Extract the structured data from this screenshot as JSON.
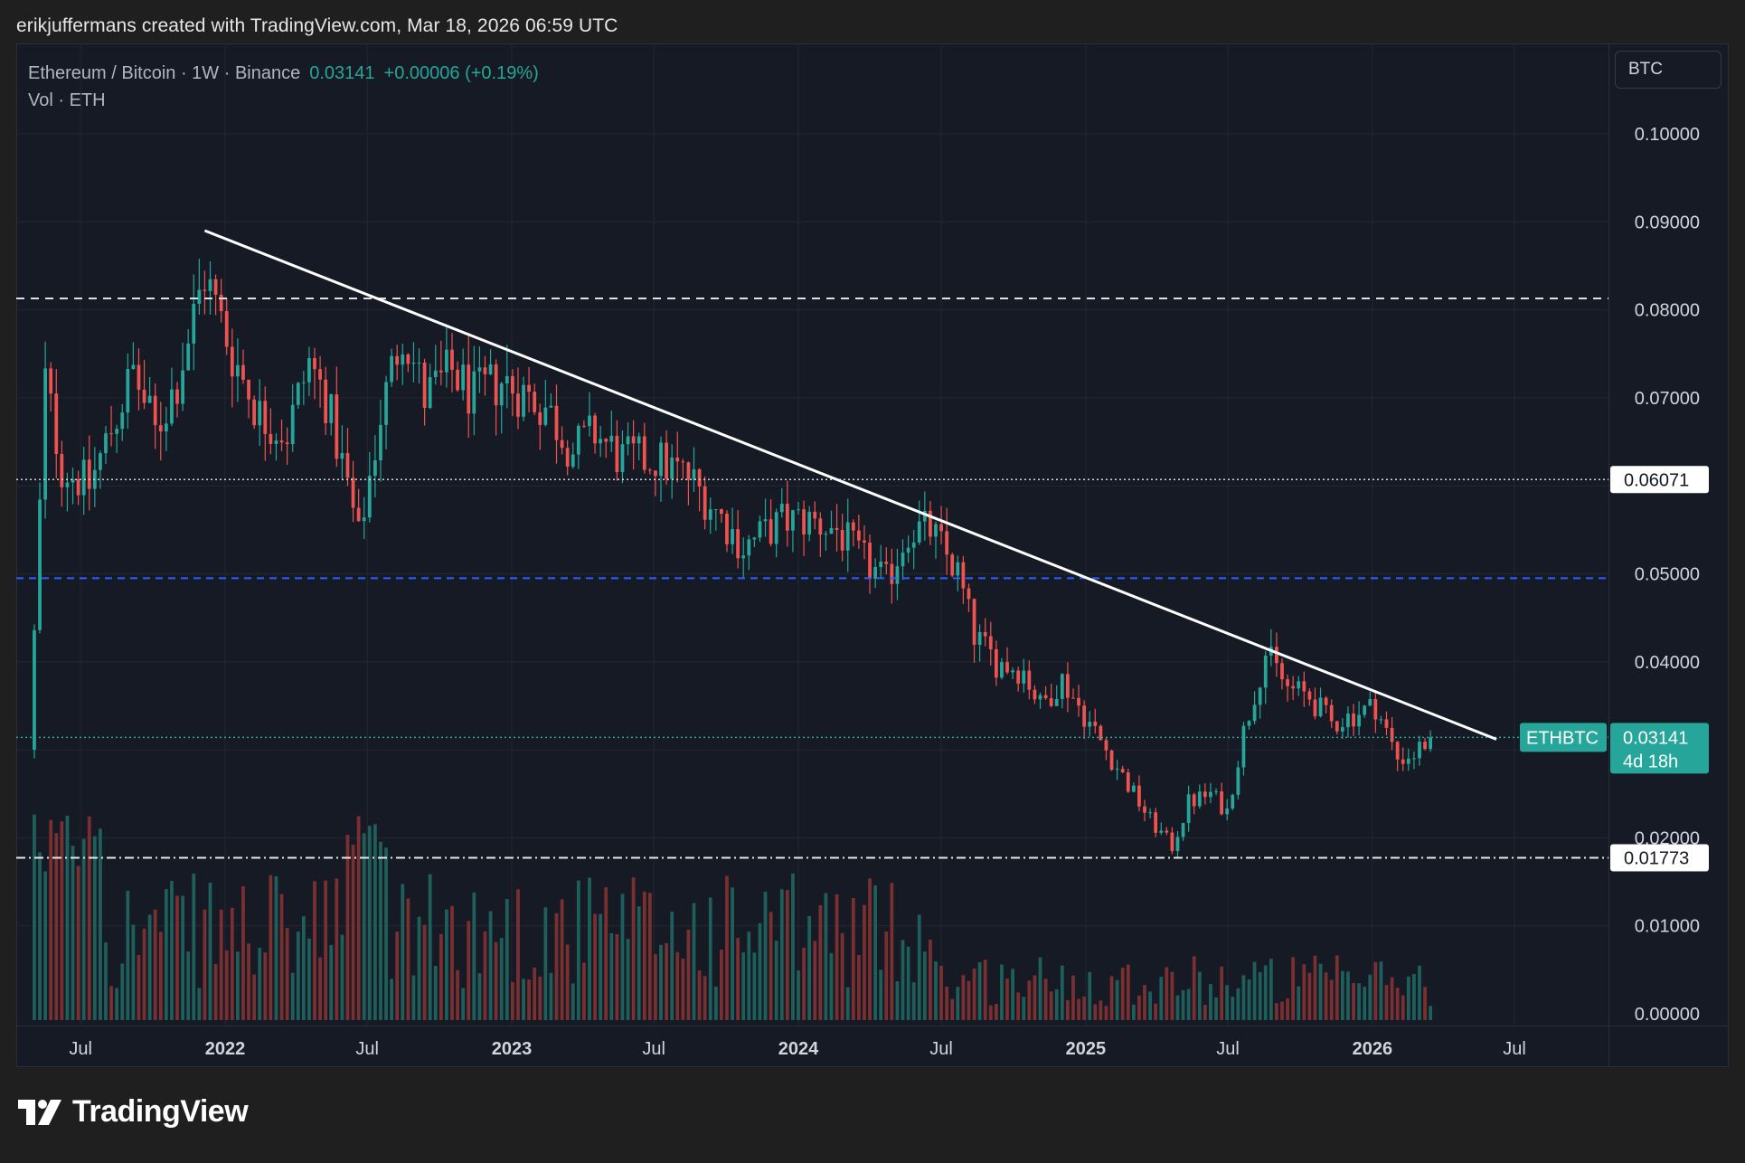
{
  "header": {
    "author_line": "erikjuffermans created with TradingView.com, Mar 18, 2026 06:59 UTC"
  },
  "legend": {
    "symbol_line": "Ethereum / Bitcoin · 1W · Binance",
    "last_price": "0.03141",
    "change": "+0.00006 (+0.19%)",
    "volume_line": "Vol · ETH"
  },
  "toolbar": {
    "currency_label": "BTC"
  },
  "branding": {
    "logo_text": "TradingView"
  },
  "colors": {
    "up": "#26a69a",
    "down": "#ef5350",
    "background": "#161a25",
    "trendline": "#ffffff",
    "support_line": "#2962ff"
  },
  "chart_data": {
    "type": "candlestick",
    "interval": "1W",
    "y_axis": {
      "ticks": [
        "0.10000",
        "0.09000",
        "0.08000",
        "0.07000",
        "0.05000",
        "0.04000",
        "0.02000",
        "0.01000",
        "0.00000"
      ],
      "range": [
        0,
        0.105
      ]
    },
    "x_axis": {
      "ticks": [
        "Jul",
        "2022",
        "Jul",
        "2023",
        "Jul",
        "2024",
        "Jul",
        "2025",
        "Jul",
        "2026",
        "Jul"
      ],
      "year_ticks": [
        "2022",
        "2023",
        "2024",
        "2025",
        "2026"
      ]
    },
    "price_anchors": [
      {
        "date": "2021-05-03",
        "close": 0.043
      },
      {
        "date": "2021-05-17",
        "close": 0.072
      },
      {
        "date": "2021-06-07",
        "close": 0.062
      },
      {
        "date": "2021-07-12",
        "close": 0.06
      },
      {
        "date": "2021-08-16",
        "close": 0.068
      },
      {
        "date": "2021-09-06",
        "close": 0.073
      },
      {
        "date": "2021-10-04",
        "close": 0.066
      },
      {
        "date": "2021-11-01",
        "close": 0.072
      },
      {
        "date": "2021-12-06",
        "close": 0.084
      },
      {
        "date": "2022-01-10",
        "close": 0.075
      },
      {
        "date": "2022-02-14",
        "close": 0.068
      },
      {
        "date": "2022-03-21",
        "close": 0.066
      },
      {
        "date": "2022-04-18",
        "close": 0.074
      },
      {
        "date": "2022-05-09",
        "close": 0.07
      },
      {
        "date": "2022-06-06",
        "close": 0.06
      },
      {
        "date": "2022-06-20",
        "close": 0.054
      },
      {
        "date": "2022-07-18",
        "close": 0.068
      },
      {
        "date": "2022-08-15",
        "close": 0.078
      },
      {
        "date": "2022-09-12",
        "close": 0.07
      },
      {
        "date": "2022-10-17",
        "close": 0.073
      },
      {
        "date": "2022-11-14",
        "close": 0.07
      },
      {
        "date": "2022-12-19",
        "close": 0.072
      },
      {
        "date": "2023-02-13",
        "close": 0.069
      },
      {
        "date": "2023-03-20",
        "close": 0.064
      },
      {
        "date": "2023-04-17",
        "close": 0.066
      },
      {
        "date": "2023-05-22",
        "close": 0.063
      },
      {
        "date": "2023-07-03",
        "close": 0.063
      },
      {
        "date": "2023-08-14",
        "close": 0.061
      },
      {
        "date": "2023-09-11",
        "close": 0.058
      },
      {
        "date": "2023-10-23",
        "close": 0.053
      },
      {
        "date": "2023-12-11",
        "close": 0.056
      },
      {
        "date": "2024-01-15",
        "close": 0.056
      },
      {
        "date": "2024-02-19",
        "close": 0.055
      },
      {
        "date": "2024-03-18",
        "close": 0.052
      },
      {
        "date": "2024-04-22",
        "close": 0.049
      },
      {
        "date": "2024-05-20",
        "close": 0.055
      },
      {
        "date": "2024-06-17",
        "close": 0.055
      },
      {
        "date": "2024-07-22",
        "close": 0.05
      },
      {
        "date": "2024-08-12",
        "close": 0.043
      },
      {
        "date": "2024-09-09",
        "close": 0.04
      },
      {
        "date": "2024-10-14",
        "close": 0.039
      },
      {
        "date": "2024-11-04",
        "close": 0.035
      },
      {
        "date": "2024-12-02",
        "close": 0.038
      },
      {
        "date": "2024-12-30",
        "close": 0.034
      },
      {
        "date": "2025-01-27",
        "close": 0.03
      },
      {
        "date": "2025-02-24",
        "close": 0.026
      },
      {
        "date": "2025-03-24",
        "close": 0.022
      },
      {
        "date": "2025-04-21",
        "close": 0.019
      },
      {
        "date": "2025-05-12",
        "close": 0.024
      },
      {
        "date": "2025-06-09",
        "close": 0.025
      },
      {
        "date": "2025-06-30",
        "close": 0.023
      },
      {
        "date": "2025-07-21",
        "close": 0.032
      },
      {
        "date": "2025-08-18",
        "close": 0.041
      },
      {
        "date": "2025-09-15",
        "close": 0.037
      },
      {
        "date": "2025-10-13",
        "close": 0.036
      },
      {
        "date": "2025-11-10",
        "close": 0.033
      },
      {
        "date": "2025-12-08",
        "close": 0.034
      },
      {
        "date": "2026-01-05",
        "close": 0.035
      },
      {
        "date": "2026-02-02",
        "close": 0.029
      },
      {
        "date": "2026-02-23",
        "close": 0.0295
      },
      {
        "date": "2026-03-16",
        "close": 0.0314
      }
    ],
    "volume_ticks": [],
    "annotations": {
      "trendline": {
        "start": {
          "date": "2021-12-06",
          "price": 0.089
        },
        "end": {
          "date": "2026-06-08",
          "price": 0.0312
        }
      },
      "resistance_dashed": 0.0813,
      "support_dashed": 0.0495,
      "dotted_level_1": {
        "value": 0.06071,
        "label": "0.06071"
      },
      "dotted_level_2": {
        "value": 0.03141
      },
      "dashdot_level": {
        "value": 0.01773,
        "label": "0.01773"
      }
    },
    "last_price_marker": {
      "symbol": "ETHBTC",
      "price": "0.03141",
      "countdown": "4d 18h"
    }
  }
}
